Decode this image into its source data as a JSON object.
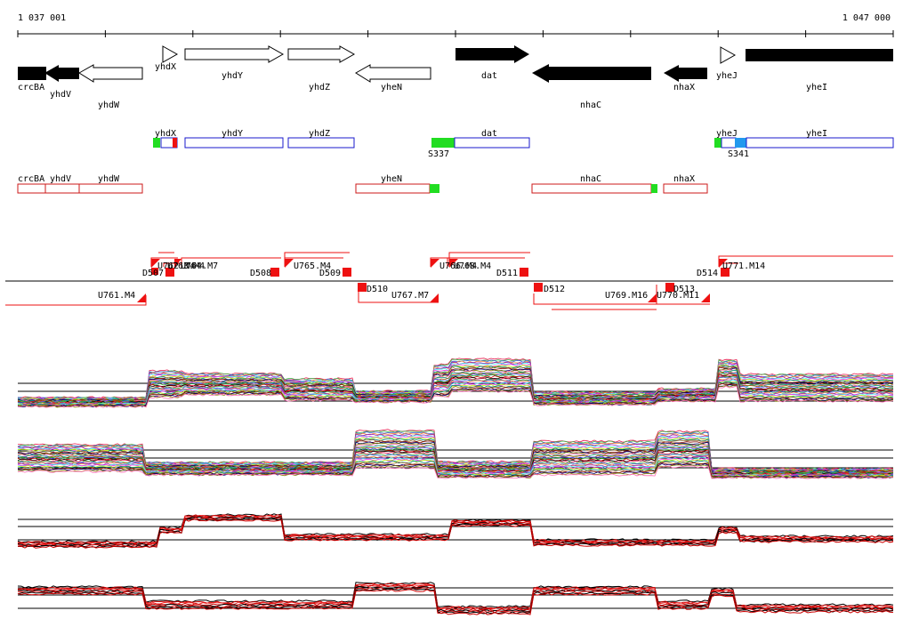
{
  "coordinates": {
    "start": "1 037 001",
    "end": "1 047 000"
  },
  "colors": {
    "forward_outline": "#000000",
    "reverse_fill": "#000000",
    "transcript_forward": "#1a1acc",
    "transcript_reverse": "#cc1a1a",
    "start_site_green": "#22dd22",
    "start_site_blue": "#2299ee",
    "segment_red": "#ee1111"
  },
  "genes": [
    {
      "name": "crcBA",
      "strand": "reverse",
      "filled": true
    },
    {
      "name": "yhdV",
      "strand": "reverse",
      "filled": true
    },
    {
      "name": "yhdW",
      "strand": "reverse",
      "filled": false
    },
    {
      "name": "yhdX",
      "strand": "forward",
      "filled": false
    },
    {
      "name": "yhdY",
      "strand": "forward",
      "filled": false
    },
    {
      "name": "yhdZ",
      "strand": "forward",
      "filled": false
    },
    {
      "name": "yheN",
      "strand": "reverse",
      "filled": false
    },
    {
      "name": "dat",
      "strand": "forward",
      "filled": true
    },
    {
      "name": "nhaC",
      "strand": "reverse",
      "filled": true
    },
    {
      "name": "nhaX",
      "strand": "reverse",
      "filled": true
    },
    {
      "name": "yheJ",
      "strand": "forward",
      "filled": false
    },
    {
      "name": "yheI",
      "strand": "forward",
      "filled": true
    }
  ],
  "transcripts_forward": [
    {
      "name": "yhdX"
    },
    {
      "name": "yhdY"
    },
    {
      "name": "yhdZ"
    },
    {
      "name": "dat"
    },
    {
      "name": "yheJ"
    },
    {
      "name": "yheI"
    }
  ],
  "transcripts_reverse": [
    {
      "name": "crcBA"
    },
    {
      "name": "yhdV"
    },
    {
      "name": "yhdW"
    },
    {
      "name": "yheN"
    },
    {
      "name": "nhaC"
    },
    {
      "name": "nhaX"
    }
  ],
  "start_sites": [
    "S337",
    "S341"
  ],
  "segments_upper": [
    "D507",
    "U762.M4",
    "U763.M4",
    "U764.M7",
    "D508",
    "U765.M4",
    "D509",
    "U766.M4",
    "U768.M4",
    "D511",
    "D514",
    "U771.M14"
  ],
  "segments_lower": [
    "U761.M4",
    "D510",
    "U767.M7",
    "D512",
    "U769.M16",
    "D513",
    "U770.M11"
  ],
  "expression_panels": [
    {
      "id": "panel-1",
      "style": "multicolor"
    },
    {
      "id": "panel-2",
      "style": "multicolor"
    },
    {
      "id": "panel-3",
      "style": "red-black"
    },
    {
      "id": "panel-4",
      "style": "red-black"
    }
  ]
}
